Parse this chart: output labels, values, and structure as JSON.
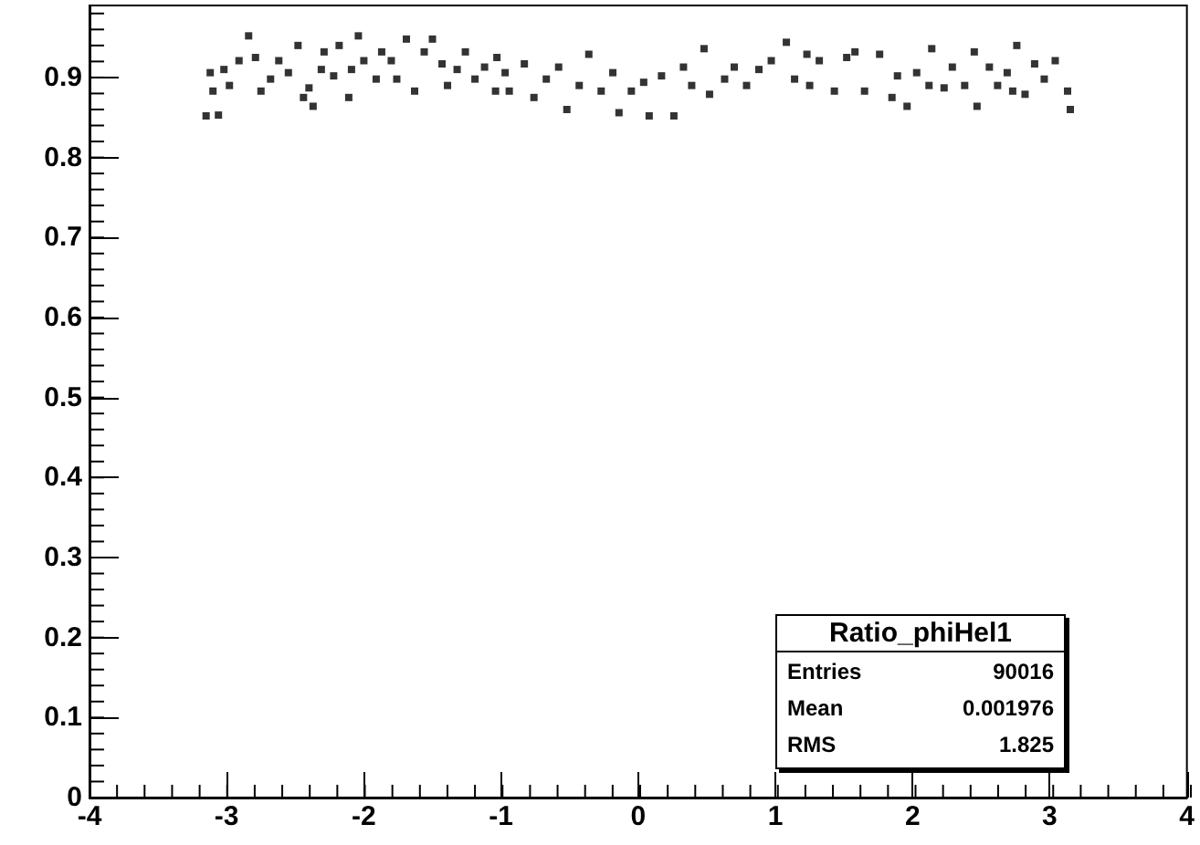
{
  "chart_data": {
    "type": "scatter",
    "marker": "square",
    "grid": false,
    "xlim": [
      -4,
      4
    ],
    "xticks": [
      -4,
      -3,
      -2,
      -1,
      0,
      1,
      2,
      3,
      4
    ],
    "ylim": [
      0,
      0.99
    ],
    "yticks": [
      0,
      0.1,
      0.2,
      0.3,
      0.4,
      0.5,
      0.6,
      0.7,
      0.8,
      0.9
    ],
    "annotations": [
      "Ratio_phiHel1",
      "Entries",
      "90016",
      "Mean",
      "0.001976",
      "RMS",
      "1.825"
    ],
    "series": [
      {
        "color": "#000000",
        "x": [
          -3.15,
          -3.06,
          -3.12,
          -3.1,
          -3.02,
          -2.98,
          -2.91,
          -2.84,
          -2.79,
          -2.75,
          -2.68,
          -2.62,
          -2.55,
          -2.48,
          -2.44,
          -2.4,
          -2.37,
          -2.31,
          -2.29,
          -2.22,
          -2.18,
          -2.11,
          -2.09,
          -2.04,
          -2.0,
          -1.91,
          -1.87,
          -1.8,
          -1.76,
          -1.69,
          -1.63,
          -1.56,
          -1.5,
          -1.43,
          -1.39,
          -1.32,
          -1.26,
          -1.19,
          -1.12,
          -1.04,
          -0.97,
          -1.03,
          -0.94,
          -0.83,
          -0.76,
          -0.67,
          -0.58,
          -0.52,
          -0.43,
          -0.36,
          -0.27,
          -0.185,
          -0.14,
          -0.05,
          0.04,
          0.08,
          0.17,
          0.26,
          0.33,
          0.39,
          0.48,
          0.52,
          0.63,
          0.7,
          0.79,
          0.88,
          0.97,
          1.08,
          1.14,
          1.23,
          1.25,
          1.32,
          1.43,
          1.52,
          1.58,
          1.65,
          1.76,
          1.85,
          1.89,
          1.96,
          2.03,
          2.12,
          2.14,
          2.23,
          2.29,
          2.38,
          2.45,
          2.47,
          2.56,
          2.62,
          2.69,
          2.73,
          2.76,
          2.82,
          2.89,
          2.96,
          3.04,
          3.13,
          3.15
        ],
        "values": [
          0.852,
          0.853,
          0.906,
          0.883,
          0.91,
          0.89,
          0.921,
          0.952,
          0.925,
          0.883,
          0.898,
          0.921,
          0.906,
          0.94,
          0.875,
          0.887,
          0.864,
          0.91,
          0.932,
          0.902,
          0.94,
          0.875,
          0.91,
          0.952,
          0.921,
          0.898,
          0.932,
          0.921,
          0.898,
          0.948,
          0.883,
          0.932,
          0.948,
          0.917,
          0.89,
          0.91,
          0.932,
          0.898,
          0.913,
          0.883,
          0.906,
          0.925,
          0.883,
          0.917,
          0.875,
          0.898,
          0.913,
          0.86,
          0.89,
          0.929,
          0.883,
          0.906,
          0.856,
          0.883,
          0.894,
          0.852,
          0.902,
          0.852,
          0.913,
          0.89,
          0.936,
          0.879,
          0.898,
          0.913,
          0.89,
          0.91,
          0.921,
          0.944,
          0.898,
          0.929,
          0.89,
          0.921,
          0.883,
          0.925,
          0.932,
          0.883,
          0.929,
          0.875,
          0.902,
          0.864,
          0.906,
          0.89,
          0.936,
          0.887,
          0.913,
          0.89,
          0.932,
          0.864,
          0.913,
          0.89,
          0.906,
          0.883,
          0.94,
          0.879,
          0.917,
          0.898,
          0.921,
          0.883,
          0.86
        ]
      }
    ]
  }
}
